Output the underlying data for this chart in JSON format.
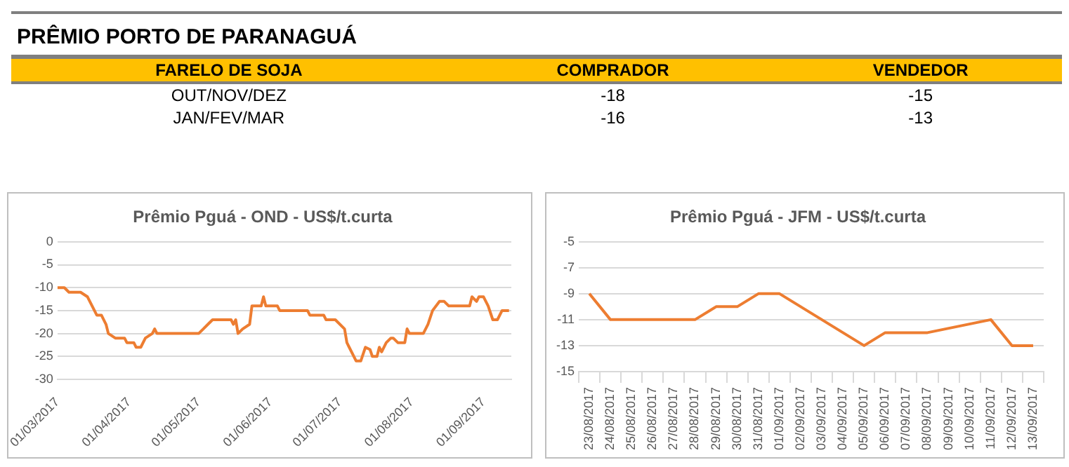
{
  "chart_data": [
    {
      "type": "other",
      "title": "PRÊMIO PORTO DE PARANAGUÁ",
      "xlabel": "FARELO DE SOJA",
      "categories": [
        "OUT/NOV/DEZ",
        "JAN/FEV/MAR"
      ],
      "data_labels": true,
      "series": [
        {
          "name": "COMPRADOR",
          "values": [
            -18,
            -16
          ]
        },
        {
          "name": "VENDEDOR",
          "values": [
            -15,
            -13
          ]
        }
      ]
    },
    {
      "type": "line",
      "title": "Prêmio Pguá - OND - US$/t.curta",
      "grid": "y",
      "legend": false,
      "marker": "none",
      "line_style": "solid",
      "x": [
        "2017-03-01",
        "2017-03-04",
        "2017-03-06",
        "2017-03-11",
        "2017-03-14",
        "2017-03-15",
        "2017-03-16",
        "2017-03-18",
        "2017-03-20",
        "2017-03-22",
        "2017-03-23",
        "2017-03-26",
        "2017-03-30",
        "2017-03-31",
        "2017-04-03",
        "2017-04-04",
        "2017-04-06",
        "2017-04-08",
        "2017-04-11",
        "2017-04-12",
        "2017-04-13",
        "2017-05-01",
        "2017-05-03",
        "2017-05-05",
        "2017-05-07",
        "2017-05-15",
        "2017-05-16",
        "2017-05-17",
        "2017-05-18",
        "2017-05-20",
        "2017-05-23",
        "2017-05-24",
        "2017-05-28",
        "2017-05-29",
        "2017-05-30",
        "2017-06-04",
        "2017-06-05",
        "2017-06-17",
        "2017-06-18",
        "2017-06-24",
        "2017-06-25",
        "2017-06-29",
        "2017-07-03",
        "2017-07-04",
        "2017-07-05",
        "2017-07-08",
        "2017-07-10",
        "2017-07-12",
        "2017-07-14",
        "2017-07-15",
        "2017-07-17",
        "2017-07-18",
        "2017-07-19",
        "2017-07-21",
        "2017-07-23",
        "2017-07-24",
        "2017-07-26",
        "2017-07-29",
        "2017-07-30",
        "2017-07-31",
        "2017-08-06",
        "2017-08-08",
        "2017-08-10",
        "2017-08-13",
        "2017-08-15",
        "2017-08-17",
        "2017-08-26",
        "2017-08-27",
        "2017-08-29",
        "2017-08-30",
        "2017-09-01",
        "2017-09-03",
        "2017-09-05",
        "2017-09-07",
        "2017-09-09",
        "2017-09-12"
      ],
      "series": [
        {
          "color": "#ed7d31",
          "values": [
            -10,
            -10,
            -11,
            -11,
            -12,
            -13,
            -14,
            -16,
            -16,
            -18,
            -20,
            -21,
            -21,
            -22,
            -22,
            -23,
            -23,
            -21,
            -20,
            -19,
            -20,
            -20,
            -19,
            -18,
            -17,
            -17,
            -18,
            -17,
            -20,
            -19,
            -18,
            -14,
            -14,
            -12,
            -14,
            -14,
            -15,
            -15,
            -16,
            -16,
            -17,
            -17,
            -19,
            -22,
            -23,
            -26,
            -26,
            -23,
            -23.5,
            -25,
            -25,
            -23,
            -24,
            -22,
            -21,
            -21,
            -22,
            -22,
            -19,
            -20,
            -20,
            -18,
            -15,
            -13,
            -13,
            -14,
            -14,
            -12,
            -13,
            -12,
            -12,
            -14,
            -17,
            -17,
            -15,
            -15
          ]
        }
      ],
      "xlim": [
        "2017-03-01",
        "2017-09-13"
      ],
      "xticks": [
        {
          "value": "2017-03-01",
          "label": "01/03/2017"
        },
        {
          "value": "2017-04-01",
          "label": "01/04/2017"
        },
        {
          "value": "2017-05-01",
          "label": "01/05/2017"
        },
        {
          "value": "2017-06-01",
          "label": "01/06/2017"
        },
        {
          "value": "2017-07-01",
          "label": "01/07/2017"
        },
        {
          "value": "2017-08-01",
          "label": "01/08/2017"
        },
        {
          "value": "2017-09-01",
          "label": "01/09/2017"
        }
      ],
      "ylim": [
        -30,
        0
      ],
      "yticks": [
        -30,
        -25,
        -20,
        -15,
        -10,
        -5,
        0
      ]
    },
    {
      "type": "line",
      "title": "Prêmio Pguá - JFM - US$/t.curta",
      "grid": "y",
      "legend": false,
      "marker": "none",
      "line_style": "solid",
      "categories": [
        "23/08/2017",
        "24/08/2017",
        "25/08/2017",
        "26/08/2017",
        "27/08/2017",
        "28/08/2017",
        "29/08/2017",
        "30/08/2017",
        "31/08/2017",
        "01/09/2017",
        "02/09/2017",
        "03/09/2017",
        "04/09/2017",
        "05/09/2017",
        "06/09/2017",
        "07/09/2017",
        "08/09/2017",
        "09/09/2017",
        "10/09/2017",
        "11/09/2017",
        "12/09/2017",
        "13/09/2017"
      ],
      "series": [
        {
          "color": "#ed7d31",
          "values": [
            -9,
            -11,
            -11,
            null,
            null,
            -11,
            -10,
            -10,
            -9,
            -9,
            null,
            null,
            null,
            -13,
            -12,
            -12,
            -12,
            null,
            null,
            -11,
            -13,
            -13
          ]
        }
      ],
      "ylim": [
        -15,
        -5
      ],
      "yticks": [
        -15,
        -13,
        -11,
        -9,
        -7,
        -5
      ]
    }
  ]
}
